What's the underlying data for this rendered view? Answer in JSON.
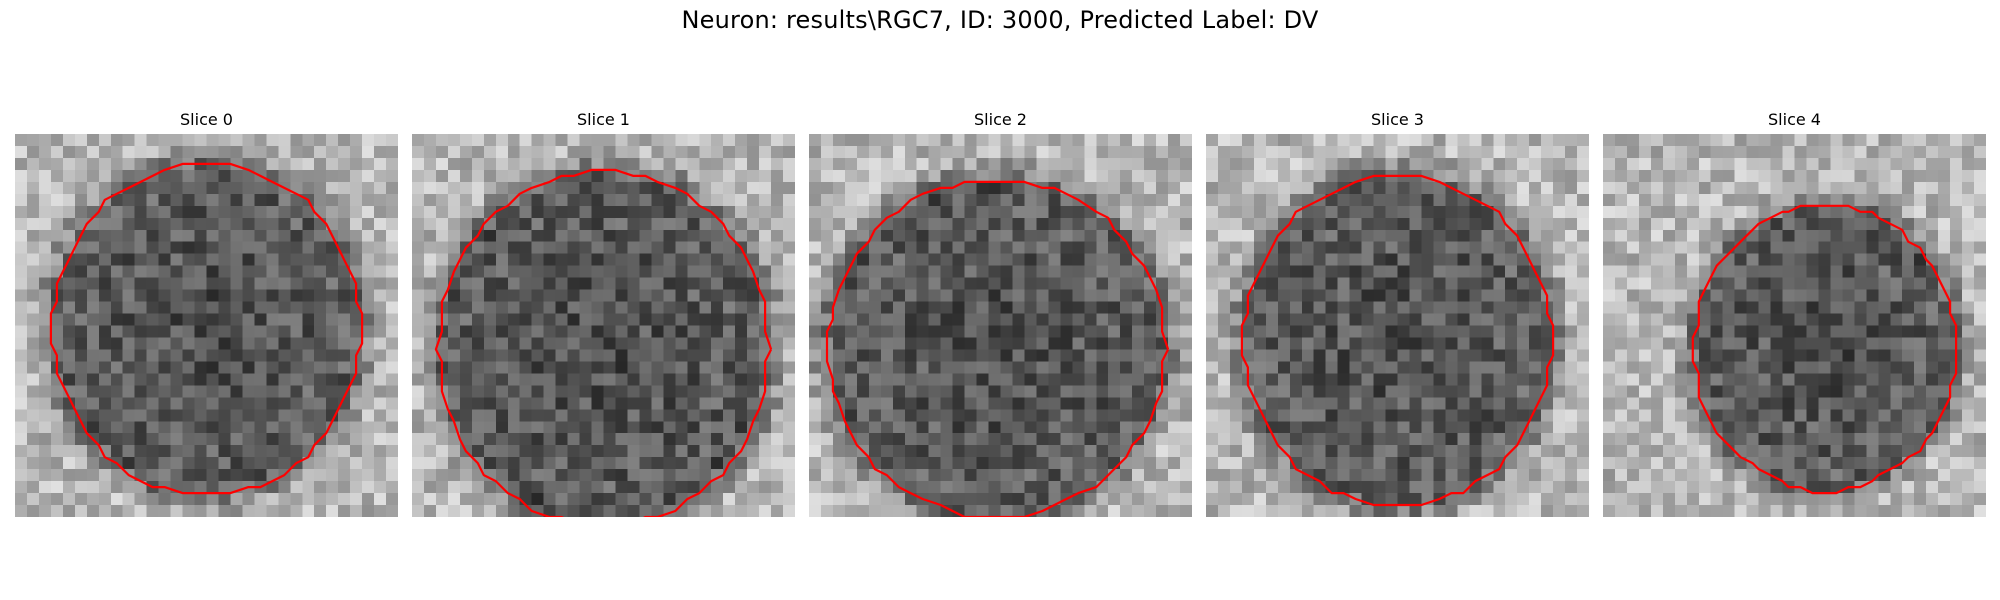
{
  "figure": {
    "title": "Neuron: results\\RGC7, ID: 3000, Predicted Label: DV",
    "contour_color": "#ff0000"
  },
  "panels": [
    {
      "title": "Slice 0",
      "seed": 11,
      "cell_center": [
        0.5,
        0.51
      ],
      "cell_radius": [
        0.41,
        0.44
      ],
      "contour_clip_top": true
    },
    {
      "title": "Slice 1",
      "seed": 23,
      "cell_center": [
        0.5,
        0.56
      ],
      "cell_radius": [
        0.44,
        0.47
      ],
      "contour_clip_top": false
    },
    {
      "title": "Slice 2",
      "seed": 37,
      "cell_center": [
        0.49,
        0.56
      ],
      "cell_radius": [
        0.45,
        0.45
      ],
      "contour_clip_top": true
    },
    {
      "title": "Slice 3",
      "seed": 41,
      "cell_center": [
        0.5,
        0.54
      ],
      "cell_radius": [
        0.41,
        0.44
      ],
      "contour_clip_top": false
    },
    {
      "title": "Slice 4",
      "seed": 53,
      "cell_center": [
        0.58,
        0.56
      ],
      "cell_radius": [
        0.35,
        0.38
      ],
      "contour_clip_top": false
    }
  ]
}
